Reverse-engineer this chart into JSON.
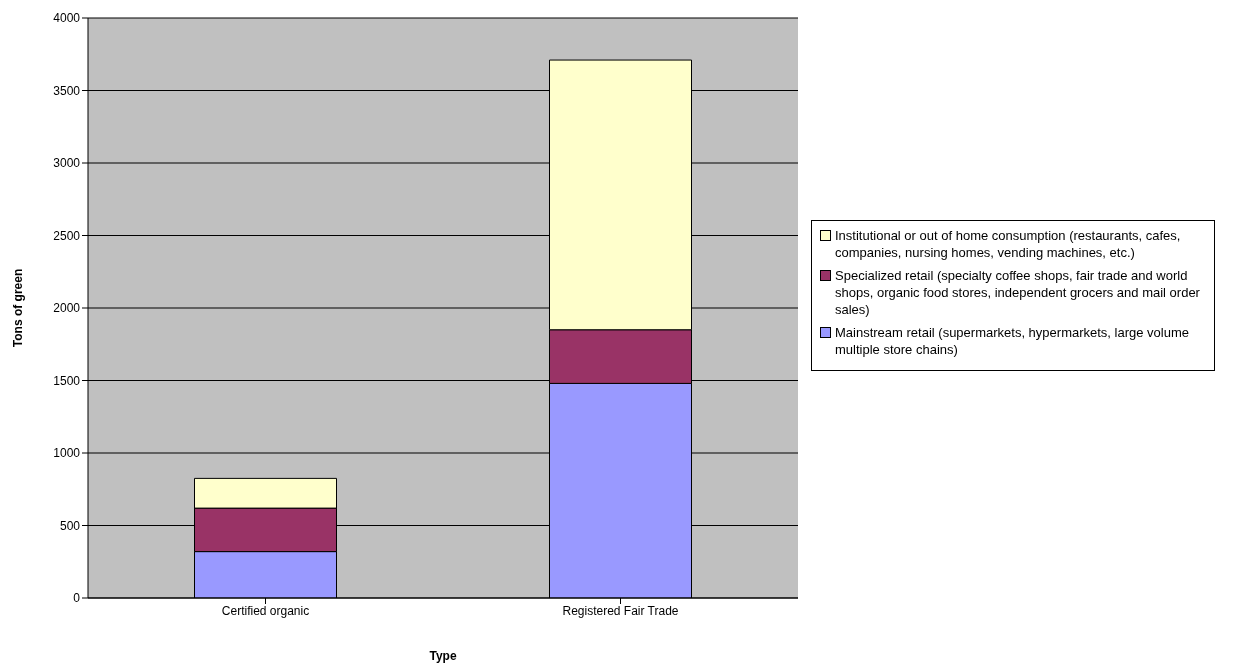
{
  "chart_data": {
    "type": "bar",
    "stacked": true,
    "xlabel": "Type",
    "ylabel": "Tons of green",
    "categories": [
      "Certified organic",
      "Registered Fair Trade"
    ],
    "series": [
      {
        "name": "Mainstream retail (supermarkets, hypermarkets, large volume multiple store chains)",
        "color": "#9999ff",
        "values": [
          320,
          1480
        ]
      },
      {
        "name": "Specialized retail (specialty coffee shops, fair trade and world shops, organic food stores, independent grocers and mail order sales)",
        "color": "#993366",
        "values": [
          300,
          370
        ]
      },
      {
        "name": "Institutional or out of home consumption (restaurants, cafes, companies, nursing homes, vending machines, etc.)",
        "color": "#ffffcc",
        "values": [
          205,
          1860
        ]
      }
    ],
    "ylim": [
      0,
      4000
    ],
    "yticks": [
      0,
      500,
      1000,
      1500,
      2000,
      2500,
      3000,
      3500,
      4000
    ],
    "grid": "y",
    "legend": "right"
  }
}
